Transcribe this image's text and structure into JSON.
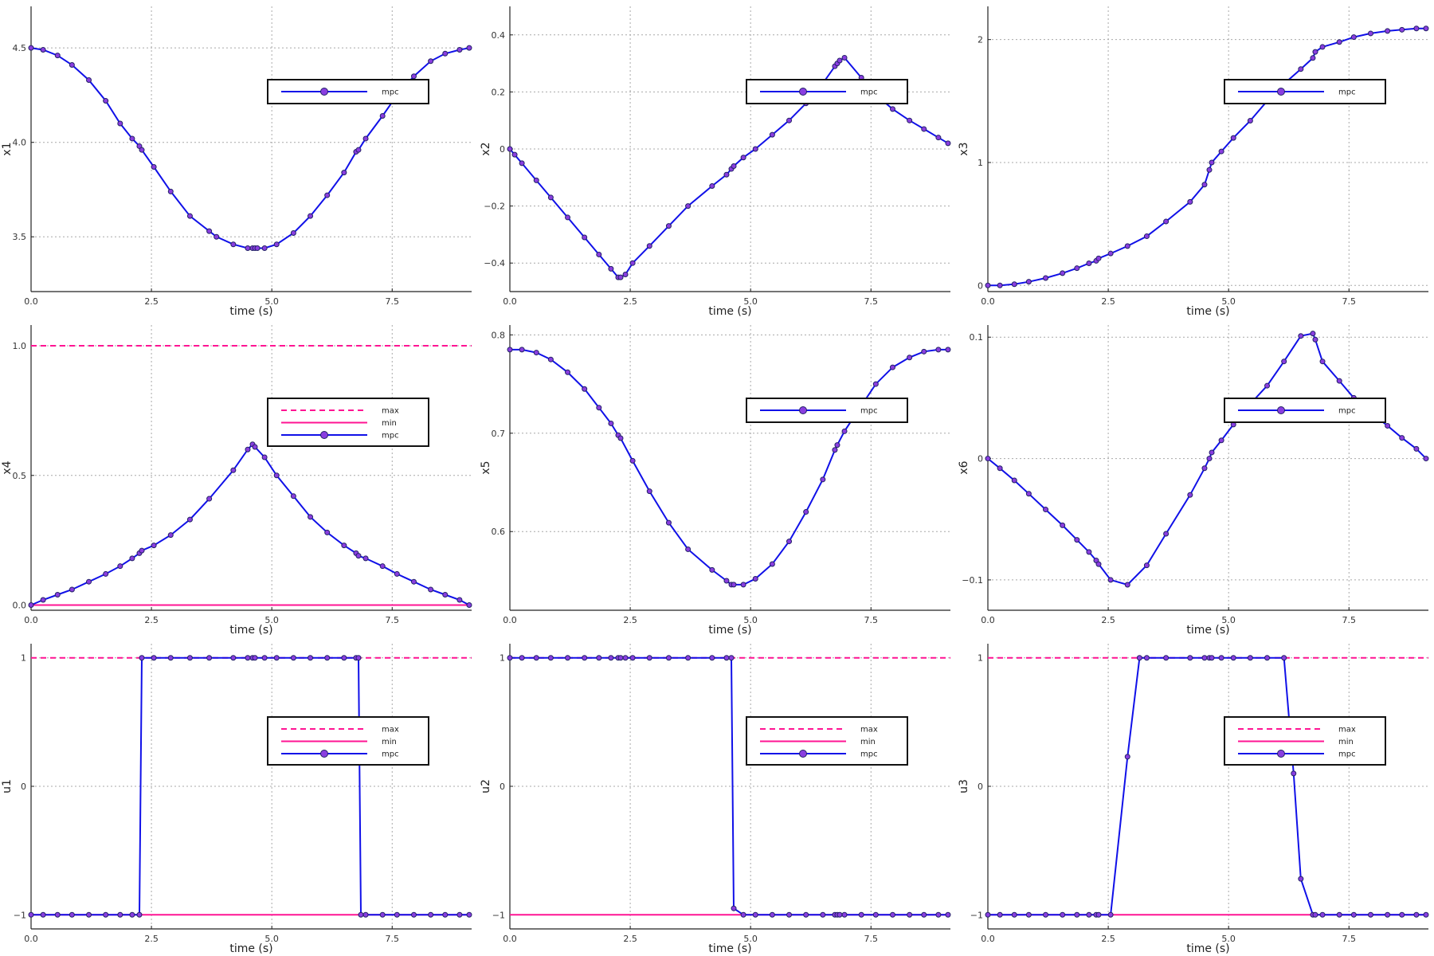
{
  "colors": {
    "mpc_line": "#1010e8",
    "mpc_marker": "#8a3ee0",
    "marker_edge": "#222266",
    "bound": "#ff1493",
    "grid": "#a8a8a8",
    "axis": "#222222"
  },
  "chart_data": [
    {
      "type": "line",
      "ylabel": "x1",
      "xlabel": "time (s)",
      "xlim": [
        0,
        9.15
      ],
      "ylim": [
        3.21,
        4.72
      ],
      "xticks": [
        "0.0",
        "2.5",
        "5.0",
        "7.5"
      ],
      "xtick_values": [
        0,
        2.5,
        5.0,
        7.5
      ],
      "yticks": [
        "3.5",
        "4.0",
        "4.5"
      ],
      "ytick_values": [
        3.5,
        4.0,
        4.5
      ],
      "legend": [
        "mpc"
      ],
      "legend_position": "top-right",
      "series": [
        {
          "name": "mpc",
          "x": [
            0,
            0.25,
            0.55,
            0.85,
            1.2,
            1.55,
            1.85,
            2.1,
            2.25,
            2.3,
            2.55,
            2.9,
            3.3,
            3.7,
            3.85,
            4.2,
            4.5,
            4.6,
            4.65,
            4.7,
            4.85,
            5.1,
            5.45,
            5.8,
            6.15,
            6.5,
            6.75,
            6.8,
            6.95,
            7.3,
            7.6,
            7.95,
            8.3,
            8.6,
            8.9,
            9.1
          ],
          "y": [
            4.5,
            4.49,
            4.46,
            4.41,
            4.33,
            4.22,
            4.1,
            4.02,
            3.98,
            3.96,
            3.87,
            3.74,
            3.61,
            3.53,
            3.5,
            3.46,
            3.44,
            3.44,
            3.44,
            3.44,
            3.44,
            3.46,
            3.52,
            3.61,
            3.72,
            3.84,
            3.95,
            3.96,
            4.02,
            4.14,
            4.25,
            4.35,
            4.43,
            4.47,
            4.49,
            4.5
          ]
        }
      ]
    },
    {
      "type": "line",
      "ylabel": "x2",
      "xlabel": "time (s)",
      "xlim": [
        0,
        9.15
      ],
      "ylim": [
        -0.5,
        0.5
      ],
      "xticks": [
        "0.0",
        "2.5",
        "5.0",
        "7.5"
      ],
      "xtick_values": [
        0,
        2.5,
        5.0,
        7.5
      ],
      "yticks": [
        "−0.4",
        "−0.2",
        "0",
        "0.2",
        "0.4"
      ],
      "ytick_values": [
        -0.4,
        -0.2,
        0,
        0.2,
        0.4
      ],
      "legend": [
        "mpc"
      ],
      "legend_position": "top-right",
      "series": [
        {
          "name": "mpc",
          "x": [
            0,
            0.1,
            0.25,
            0.55,
            0.85,
            1.2,
            1.55,
            1.85,
            2.1,
            2.25,
            2.3,
            2.4,
            2.55,
            2.9,
            3.3,
            3.7,
            4.2,
            4.5,
            4.6,
            4.65,
            4.85,
            5.1,
            5.45,
            5.8,
            6.15,
            6.5,
            6.75,
            6.8,
            6.85,
            6.95,
            7.3,
            7.6,
            7.95,
            8.3,
            8.6,
            8.9,
            9.1
          ],
          "y": [
            0,
            -0.02,
            -0.05,
            -0.11,
            -0.17,
            -0.24,
            -0.31,
            -0.37,
            -0.42,
            -0.45,
            -0.45,
            -0.44,
            -0.4,
            -0.34,
            -0.27,
            -0.2,
            -0.13,
            -0.09,
            -0.07,
            -0.06,
            -0.03,
            0,
            0.05,
            0.1,
            0.16,
            0.23,
            0.29,
            0.3,
            0.31,
            0.32,
            0.25,
            0.19,
            0.14,
            0.1,
            0.07,
            0.04,
            0.02
          ]
        }
      ]
    },
    {
      "type": "line",
      "ylabel": "x3",
      "xlabel": "time (s)",
      "xlim": [
        0,
        9.15
      ],
      "ylim": [
        -0.05,
        2.27
      ],
      "xticks": [
        "0.0",
        "2.5",
        "5.0",
        "7.5"
      ],
      "xtick_values": [
        0,
        2.5,
        5.0,
        7.5
      ],
      "yticks": [
        "0",
        "1",
        "2"
      ],
      "ytick_values": [
        0,
        1,
        2
      ],
      "legend": [
        "mpc"
      ],
      "legend_position": "top-right",
      "series": [
        {
          "name": "mpc",
          "x": [
            0,
            0.25,
            0.55,
            0.85,
            1.2,
            1.55,
            1.85,
            2.1,
            2.25,
            2.3,
            2.55,
            2.9,
            3.3,
            3.7,
            4.2,
            4.5,
            4.6,
            4.65,
            4.85,
            5.1,
            5.45,
            5.8,
            6.15,
            6.5,
            6.75,
            6.8,
            6.95,
            7.3,
            7.6,
            7.95,
            8.3,
            8.6,
            8.9,
            9.1
          ],
          "y": [
            0,
            0,
            0.01,
            0.03,
            0.06,
            0.1,
            0.14,
            0.18,
            0.2,
            0.22,
            0.26,
            0.32,
            0.4,
            0.52,
            0.68,
            0.82,
            0.94,
            1.0,
            1.09,
            1.2,
            1.34,
            1.5,
            1.64,
            1.76,
            1.85,
            1.9,
            1.94,
            1.98,
            2.02,
            2.05,
            2.07,
            2.08,
            2.09,
            2.09
          ]
        }
      ]
    },
    {
      "type": "line",
      "ylabel": "x4",
      "xlabel": "time (s)",
      "xlim": [
        0,
        9.15
      ],
      "ylim": [
        -0.02,
        1.08
      ],
      "xticks": [
        "0.0",
        "2.5",
        "5.0",
        "7.5"
      ],
      "xtick_values": [
        0,
        2.5,
        5.0,
        7.5
      ],
      "yticks": [
        "0.0",
        "0.5",
        "1.0"
      ],
      "ytick_values": [
        0,
        0.5,
        1.0
      ],
      "legend": [
        "max",
        "min",
        "mpc"
      ],
      "legend_position": "top-right",
      "bounds": {
        "max": 1.0,
        "min": 0.0
      },
      "series": [
        {
          "name": "mpc",
          "x": [
            0,
            0.25,
            0.55,
            0.85,
            1.2,
            1.55,
            1.85,
            2.1,
            2.25,
            2.3,
            2.55,
            2.9,
            3.3,
            3.7,
            4.2,
            4.5,
            4.6,
            4.65,
            4.85,
            5.1,
            5.45,
            5.8,
            6.15,
            6.5,
            6.75,
            6.8,
            6.95,
            7.3,
            7.6,
            7.95,
            8.3,
            8.6,
            8.9,
            9.1
          ],
          "y": [
            0,
            0.02,
            0.04,
            0.06,
            0.09,
            0.12,
            0.15,
            0.18,
            0.2,
            0.21,
            0.23,
            0.27,
            0.33,
            0.41,
            0.52,
            0.6,
            0.62,
            0.61,
            0.57,
            0.5,
            0.42,
            0.34,
            0.28,
            0.23,
            0.2,
            0.19,
            0.18,
            0.15,
            0.12,
            0.09,
            0.06,
            0.04,
            0.02,
            0.0
          ]
        }
      ]
    },
    {
      "type": "line",
      "ylabel": "x5",
      "xlabel": "time (s)",
      "xlim": [
        0,
        9.15
      ],
      "ylim": [
        0.52,
        0.81
      ],
      "xticks": [
        "0.0",
        "2.5",
        "5.0",
        "7.5"
      ],
      "xtick_values": [
        0,
        2.5,
        5.0,
        7.5
      ],
      "yticks": [
        "0.6",
        "0.7",
        "0.8"
      ],
      "ytick_values": [
        0.6,
        0.7,
        0.8
      ],
      "legend": [
        "mpc"
      ],
      "legend_position": "top-right",
      "series": [
        {
          "name": "mpc",
          "x": [
            0,
            0.25,
            0.55,
            0.85,
            1.2,
            1.55,
            1.85,
            2.1,
            2.25,
            2.3,
            2.55,
            2.9,
            3.3,
            3.7,
            4.2,
            4.5,
            4.6,
            4.65,
            4.85,
            5.1,
            5.45,
            5.8,
            6.15,
            6.5,
            6.75,
            6.8,
            6.95,
            7.3,
            7.6,
            7.95,
            8.3,
            8.6,
            8.9,
            9.1
          ],
          "y": [
            0.785,
            0.785,
            0.782,
            0.775,
            0.762,
            0.745,
            0.726,
            0.71,
            0.698,
            0.695,
            0.672,
            0.641,
            0.609,
            0.582,
            0.561,
            0.55,
            0.546,
            0.546,
            0.546,
            0.552,
            0.567,
            0.59,
            0.62,
            0.653,
            0.683,
            0.688,
            0.702,
            0.728,
            0.75,
            0.767,
            0.777,
            0.783,
            0.785,
            0.785
          ]
        }
      ]
    },
    {
      "type": "line",
      "ylabel": "x6",
      "xlabel": "time (s)",
      "xlim": [
        0,
        9.15
      ],
      "ylim": [
        -0.125,
        0.11
      ],
      "xticks": [
        "0.0",
        "2.5",
        "5.0",
        "7.5"
      ],
      "xtick_values": [
        0,
        2.5,
        5.0,
        7.5
      ],
      "yticks": [
        "−0.1",
        "0",
        "0.1"
      ],
      "ytick_values": [
        -0.1,
        0,
        0.1
      ],
      "legend": [
        "mpc"
      ],
      "legend_position": "top-right",
      "series": [
        {
          "name": "mpc",
          "x": [
            0,
            0.25,
            0.55,
            0.85,
            1.2,
            1.55,
            1.85,
            2.1,
            2.25,
            2.3,
            2.55,
            2.9,
            3.3,
            3.7,
            4.2,
            4.5,
            4.6,
            4.65,
            4.85,
            5.1,
            5.45,
            5.8,
            6.15,
            6.5,
            6.75,
            6.8,
            6.95,
            7.3,
            7.6,
            7.95,
            8.3,
            8.6,
            8.9,
            9.1
          ],
          "y": [
            0,
            -0.008,
            -0.018,
            -0.029,
            -0.042,
            -0.055,
            -0.067,
            -0.077,
            -0.084,
            -0.087,
            -0.1,
            -0.104,
            -0.088,
            -0.062,
            -0.03,
            -0.008,
            0.0,
            0.005,
            0.015,
            0.028,
            0.045,
            0.06,
            0.08,
            0.101,
            0.103,
            0.098,
            0.08,
            0.064,
            0.05,
            0.038,
            0.027,
            0.017,
            0.008,
            0.0
          ]
        }
      ]
    },
    {
      "type": "line",
      "ylabel": "u1",
      "xlabel": "time (s)",
      "xlim": [
        0,
        9.15
      ],
      "ylim": [
        -1.11,
        1.11
      ],
      "xticks": [
        "0.0",
        "2.5",
        "5.0",
        "7.5"
      ],
      "xtick_values": [
        0,
        2.5,
        5.0,
        7.5
      ],
      "yticks": [
        "−1",
        "0",
        "1"
      ],
      "ytick_values": [
        -1,
        0,
        1
      ],
      "legend": [
        "max",
        "min",
        "mpc"
      ],
      "legend_position": "top-right",
      "bounds": {
        "max": 1,
        "min": -1
      },
      "series": [
        {
          "name": "mpc",
          "x": [
            0,
            0.25,
            0.55,
            0.85,
            1.2,
            1.55,
            1.85,
            2.1,
            2.25,
            2.3,
            2.55,
            2.9,
            3.3,
            3.7,
            4.2,
            4.5,
            4.6,
            4.65,
            4.85,
            5.1,
            5.45,
            5.8,
            6.15,
            6.5,
            6.75,
            6.8,
            6.85,
            6.95,
            7.3,
            7.6,
            7.95,
            8.3,
            8.6,
            8.9,
            9.1
          ],
          "y": [
            -1,
            -1,
            -1,
            -1,
            -1,
            -1,
            -1,
            -1,
            -1,
            1,
            1,
            1,
            1,
            1,
            1,
            1,
            1,
            1,
            1,
            1,
            1,
            1,
            1,
            1,
            1,
            1,
            -1,
            -1,
            -1,
            -1,
            -1,
            -1,
            -1,
            -1,
            -1
          ]
        }
      ]
    },
    {
      "type": "line",
      "ylabel": "u2",
      "xlabel": "time (s)",
      "xlim": [
        0,
        9.15
      ],
      "ylim": [
        -1.11,
        1.11
      ],
      "xticks": [
        "0.0",
        "2.5",
        "5.0",
        "7.5"
      ],
      "xtick_values": [
        0,
        2.5,
        5.0,
        7.5
      ],
      "yticks": [
        "−1",
        "0",
        "1"
      ],
      "ytick_values": [
        -1,
        0,
        1
      ],
      "legend": [
        "max",
        "min",
        "mpc"
      ],
      "legend_position": "top-right",
      "bounds": {
        "max": 1,
        "min": -1
      },
      "series": [
        {
          "name": "mpc",
          "x": [
            0,
            0.25,
            0.55,
            0.85,
            1.2,
            1.55,
            1.85,
            2.1,
            2.25,
            2.3,
            2.4,
            2.55,
            2.9,
            3.3,
            3.7,
            4.2,
            4.5,
            4.6,
            4.65,
            4.85,
            5.1,
            5.45,
            5.8,
            6.15,
            6.5,
            6.75,
            6.8,
            6.85,
            6.95,
            7.3,
            7.6,
            7.95,
            8.3,
            8.6,
            8.9,
            9.1
          ],
          "y": [
            1,
            1,
            1,
            1,
            1,
            1,
            1,
            1,
            1,
            1,
            1,
            1,
            1,
            1,
            1,
            1,
            1,
            1,
            -0.95,
            -1,
            -1,
            -1,
            -1,
            -1,
            -1,
            -1,
            -1,
            -1,
            -1,
            -1,
            -1,
            -1,
            -1,
            -1,
            -1,
            -1
          ]
        }
      ]
    },
    {
      "type": "line",
      "ylabel": "u3",
      "xlabel": "time (s)",
      "xlim": [
        0,
        9.15
      ],
      "ylim": [
        -1.11,
        1.11
      ],
      "xticks": [
        "0.0",
        "2.5",
        "5.0",
        "7.5"
      ],
      "xtick_values": [
        0,
        2.5,
        5.0,
        7.5
      ],
      "yticks": [
        "−1",
        "0",
        "1"
      ],
      "ytick_values": [
        -1,
        0,
        1
      ],
      "legend": [
        "max",
        "min",
        "mpc"
      ],
      "legend_position": "top-right",
      "bounds": {
        "max": 1,
        "min": -1
      },
      "series": [
        {
          "name": "mpc",
          "x": [
            0,
            0.25,
            0.55,
            0.85,
            1.2,
            1.55,
            1.85,
            2.1,
            2.25,
            2.3,
            2.55,
            2.9,
            3.15,
            3.3,
            3.7,
            4.2,
            4.5,
            4.6,
            4.65,
            4.85,
            5.1,
            5.45,
            5.8,
            6.15,
            6.35,
            6.5,
            6.75,
            6.8,
            6.95,
            7.3,
            7.6,
            7.95,
            8.3,
            8.6,
            8.9,
            9.1
          ],
          "y": [
            -1,
            -1,
            -1,
            -1,
            -1,
            -1,
            -1,
            -1,
            -1,
            -1,
            -1,
            0.23,
            1,
            1,
            1,
            1,
            1,
            1,
            1,
            1,
            1,
            1,
            1,
            1,
            0.1,
            -0.72,
            -1,
            -1,
            -1,
            -1,
            -1,
            -1,
            -1,
            -1,
            -1,
            -1
          ]
        }
      ]
    }
  ]
}
